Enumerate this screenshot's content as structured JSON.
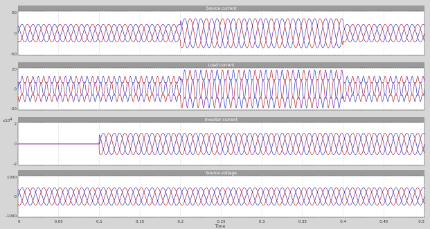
{
  "figure": {
    "background": "#d6d6d6",
    "axes_background": "#ffffff",
    "grid": true,
    "grid_color": "#c8c8c8"
  },
  "x_axis": {
    "label": "Time",
    "range": [
      0,
      0.5
    ],
    "ticks": [
      0,
      0.05,
      0.1,
      0.15,
      0.2,
      0.25,
      0.3,
      0.35,
      0.4,
      0.45,
      0.5
    ],
    "tick_labels": [
      "0",
      "0.05",
      "0.1",
      "0.15",
      "0.2",
      "0.25",
      "0.3",
      "0.35",
      "0.4",
      "0.45",
      "0.5"
    ]
  },
  "chart_data": [
    {
      "type": "line",
      "title": "Source current",
      "ylim": [
        -50,
        50
      ],
      "yticks": [
        50,
        0,
        -50
      ],
      "ytick_labels": [
        "50",
        "0",
        "-50"
      ],
      "frequency_hz": 50,
      "phases": [
        "a",
        "b",
        "c"
      ],
      "series_colors": [
        "#1f3fbf",
        "#bf1f1f",
        "#7a1fa8"
      ],
      "amplitude_segments": [
        {
          "t0": 0,
          "t1": 0.2,
          "amplitude": 20
        },
        {
          "t0": 0.2,
          "t1": 0.4,
          "amplitude": 33
        },
        {
          "t0": 0.4,
          "t1": 0.5,
          "amplitude": 20
        }
      ]
    },
    {
      "type": "line",
      "title": "Load current",
      "ylim": [
        -20,
        20
      ],
      "yticks": [
        20,
        0,
        -20
      ],
      "ytick_labels": [
        "20",
        "0",
        "-20"
      ],
      "frequency_hz": 50,
      "phases": [
        "a",
        "b",
        "c"
      ],
      "series_colors": [
        "#1f3fbf",
        "#bf1f1f",
        "#7a1fa8"
      ],
      "harmonic_5th_ratio": 0.2,
      "amplitude_segments": [
        {
          "t0": 0,
          "t1": 0.2,
          "amplitude": 10
        },
        {
          "t0": 0.2,
          "t1": 0.4,
          "amplitude": 15
        },
        {
          "t0": 0.4,
          "t1": 0.5,
          "amplitude": 10
        }
      ]
    },
    {
      "type": "line",
      "title": "Inverter current",
      "y_scale_note": "x10",
      "y_scale_exp": "4",
      "ylim": [
        -2,
        2
      ],
      "yticks": [
        2,
        0,
        -2
      ],
      "ytick_labels": [
        "2",
        "0",
        "-2"
      ],
      "frequency_hz": 50,
      "phases": [
        "a",
        "b",
        "c"
      ],
      "series_colors": [
        "#1f3fbf",
        "#bf1f1f",
        "#7a1fa8"
      ],
      "amplitude_segments": [
        {
          "t0": 0,
          "t1": 0.1,
          "amplitude": 0
        },
        {
          "t0": 0.1,
          "t1": 0.5,
          "amplitude": 1
        }
      ]
    },
    {
      "type": "line",
      "title": "Source voltage",
      "ylim": [
        -1000,
        1000
      ],
      "yticks": [
        1000,
        0,
        -1000
      ],
      "ytick_labels": [
        "1000",
        "0",
        "-1000"
      ],
      "frequency_hz": 50,
      "phases": [
        "a",
        "b",
        "c"
      ],
      "series_colors": [
        "#1f3fbf",
        "#bf1f1f",
        "#7a1fa8"
      ],
      "amplitude_segments": [
        {
          "t0": 0,
          "t1": 0.5,
          "amplitude": 420
        }
      ]
    }
  ]
}
